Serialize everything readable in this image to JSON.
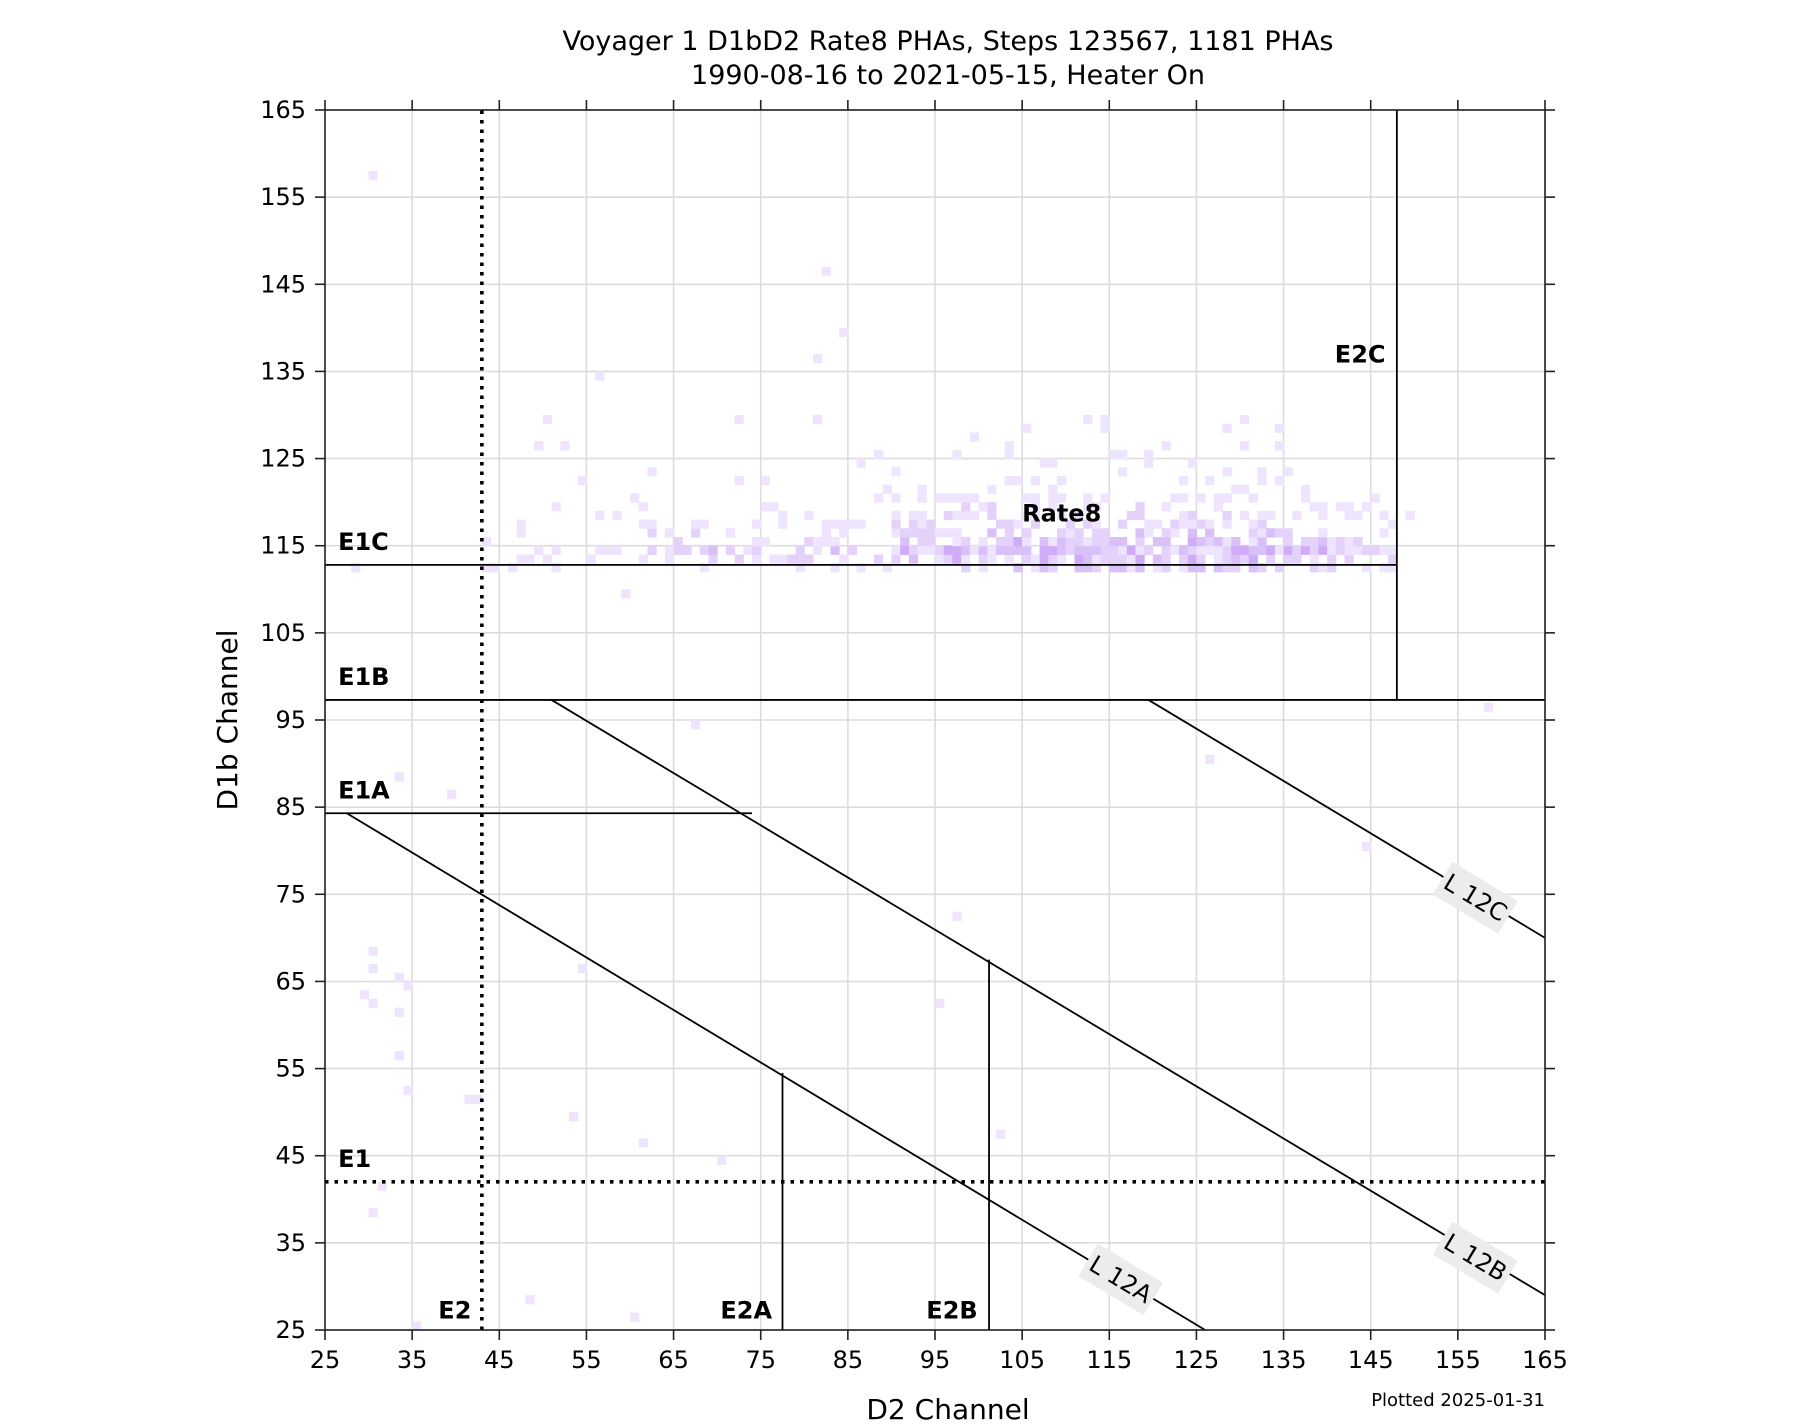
{
  "chart_data": {
    "type": "heatmap",
    "title": "Voyager 1 D1bD2 Rate8 PHAs, Steps 123567, 1181 PHAs",
    "subtitle": "1990-08-16 to 2021-05-15, Heater On",
    "xlabel": "D2 Channel",
    "ylabel": "D1b Channel",
    "xlim": [
      25,
      165
    ],
    "ylim": [
      25,
      165
    ],
    "xticks": [
      25,
      35,
      45,
      55,
      65,
      75,
      85,
      95,
      105,
      115,
      125,
      135,
      145,
      155,
      165
    ],
    "yticks": [
      25,
      35,
      45,
      55,
      65,
      75,
      85,
      95,
      105,
      115,
      125,
      135,
      145,
      155,
      165
    ],
    "grid": true,
    "footer": "Plotted 2025-01-31",
    "total_phas": 1181,
    "colormap": [
      "#efe4fd",
      "#e4d2fb",
      "#d9c0f9",
      "#cfacf7"
    ],
    "cluster": {
      "label": "Rate8",
      "x_range": [
        43,
        148
      ],
      "y_range": [
        112,
        130
      ],
      "peak_y": 114,
      "peak_x_range": [
        90,
        140
      ]
    },
    "outliers": [
      [
        30,
        157
      ],
      [
        82,
        146
      ],
      [
        84,
        139
      ],
      [
        81,
        136
      ],
      [
        56,
        134
      ],
      [
        50,
        129
      ],
      [
        72,
        129
      ],
      [
        81,
        129
      ],
      [
        105,
        128
      ],
      [
        112,
        129
      ],
      [
        114,
        129
      ],
      [
        130,
        129
      ],
      [
        49,
        126
      ],
      [
        52,
        126
      ],
      [
        86,
        124
      ],
      [
        158,
        96
      ],
      [
        67,
        94
      ],
      [
        126,
        90
      ],
      [
        33,
        88
      ],
      [
        39,
        86
      ],
      [
        144,
        80
      ],
      [
        97,
        72
      ],
      [
        30,
        68
      ],
      [
        30,
        66
      ],
      [
        54,
        66
      ],
      [
        33,
        65
      ],
      [
        34,
        64
      ],
      [
        29,
        63
      ],
      [
        30,
        62
      ],
      [
        95,
        62
      ],
      [
        33,
        61
      ],
      [
        33,
        56
      ],
      [
        34,
        52
      ],
      [
        41,
        51
      ],
      [
        42,
        51
      ],
      [
        53,
        49
      ],
      [
        102,
        47
      ],
      [
        61,
        46
      ],
      [
        70,
        44
      ],
      [
        31,
        41
      ],
      [
        30,
        38
      ],
      [
        48,
        28
      ],
      [
        60,
        26
      ],
      [
        35,
        25
      ],
      [
        59,
        109
      ],
      [
        28,
        112
      ],
      [
        149,
        118
      ]
    ],
    "boundaries": [
      {
        "name": "E1C",
        "type": "hline",
        "y": 112.8,
        "x": [
          25,
          148
        ]
      },
      {
        "name": "E1B",
        "type": "hline",
        "y": 97.3,
        "x": [
          25,
          165
        ]
      },
      {
        "name": "E1A",
        "type": "hline",
        "y": 84.3,
        "x": [
          25,
          74
        ]
      },
      {
        "name": "E1",
        "type": "hline-dotted",
        "y": 42,
        "x": [
          25,
          165
        ]
      },
      {
        "name": "E2",
        "type": "vline-dotted",
        "x": 43,
        "y": [
          25,
          165
        ]
      },
      {
        "name": "E2C",
        "type": "vline",
        "x": 148,
        "y": [
          97.3,
          165
        ]
      },
      {
        "name": "E2A",
        "type": "vline",
        "x": 77.5,
        "y": [
          25,
          54.5
        ]
      },
      {
        "name": "E2B",
        "type": "vline",
        "x": 101.2,
        "y": [
          25,
          67.5
        ]
      },
      {
        "name": "L 12A",
        "type": "line",
        "from": [
          27.5,
          84.3
        ],
        "to": [
          126,
          25
        ]
      },
      {
        "name": "L 12B",
        "type": "line",
        "from": [
          51,
          97.3
        ],
        "to": [
          165,
          29
        ]
      },
      {
        "name": "L 12C",
        "type": "line",
        "from": [
          119.5,
          97.3
        ],
        "to": [
          165,
          70
        ]
      }
    ],
    "labels": [
      {
        "text": "E1C",
        "x": 26.5,
        "y": 114.5
      },
      {
        "text": "E1B",
        "x": 26.5,
        "y": 99
      },
      {
        "text": "E1A",
        "x": 26.5,
        "y": 86
      },
      {
        "text": "E1",
        "x": 26.5,
        "y": 43.7
      },
      {
        "text": "E2",
        "x": 41.8,
        "y": 26.3,
        "anchor": "end"
      },
      {
        "text": "E2A",
        "x": 76.3,
        "y": 26.3,
        "anchor": "end"
      },
      {
        "text": "E2B",
        "x": 99.9,
        "y": 26.3,
        "anchor": "end"
      },
      {
        "text": "E2C",
        "x": 146.7,
        "y": 136,
        "anchor": "end"
      },
      {
        "text": "Rate8",
        "x": 105,
        "y": 117.8
      }
    ],
    "line_labels": [
      {
        "text": "L 12A",
        "x": 116.3,
        "y": 30.8
      },
      {
        "text": "L 12B",
        "x": 157,
        "y": 33.3
      },
      {
        "text": "L 12C",
        "x": 157,
        "y": 74.6
      }
    ]
  }
}
